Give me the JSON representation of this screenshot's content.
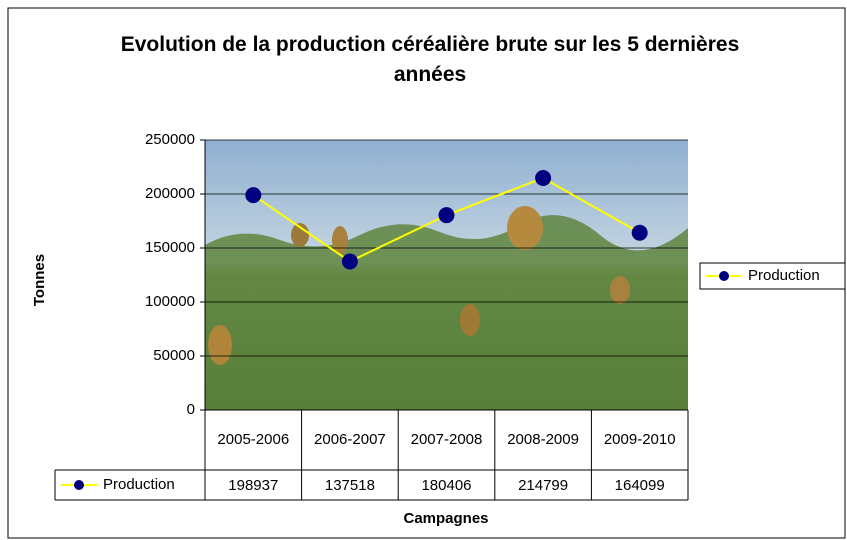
{
  "chart_data": {
    "type": "line",
    "title": "Evolution de la production céréalière brute sur les 5 dernières années",
    "x_label": "Campagnes",
    "y_label": "Tonnes",
    "categories": [
      "2005-2006",
      "2006-2007",
      "2007-2008",
      "2008-2009",
      "2009-2010"
    ],
    "series": [
      {
        "name": "Production",
        "line_color": "#ffff00",
        "marker_color": "#000080",
        "values": [
          198937,
          137518,
          180406,
          214799,
          164099
        ]
      }
    ],
    "ylim": [
      0,
      250000
    ],
    "yticks": [
      0,
      50000,
      100000,
      150000,
      200000,
      250000
    ],
    "grid": true,
    "legend": "right",
    "data_table": true
  }
}
